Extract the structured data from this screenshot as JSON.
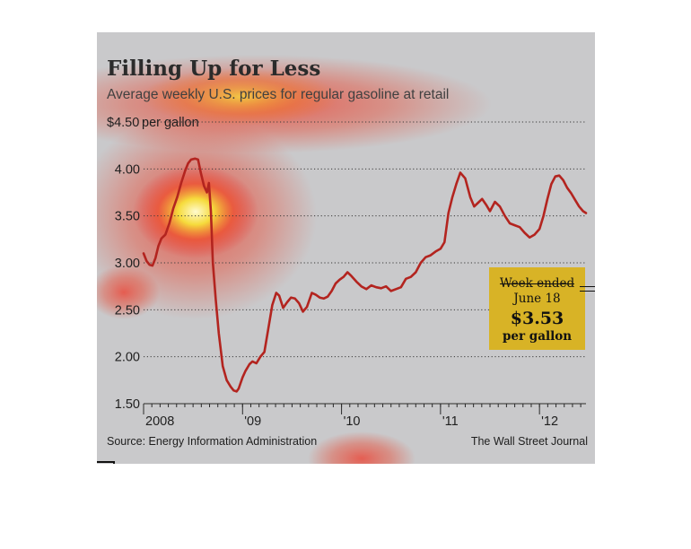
{
  "chart_data": {
    "type": "line",
    "title": "Filling Up for Less",
    "subtitle": "Average weekly U.S. prices for regular gasoline at retail",
    "y_unit_label": "per gallon",
    "ylim": [
      1.5,
      4.5
    ],
    "y_ticks": [
      1.5,
      2.0,
      2.5,
      3.0,
      3.5,
      4.0,
      4.5
    ],
    "y_tick_labels": [
      "1.50",
      "2.00",
      "2.50",
      "3.00",
      "3.50",
      "4.00",
      "$4.50"
    ],
    "xlim": [
      2008.0,
      2012.47
    ],
    "x_tick_labels": [
      {
        "x": 2008,
        "label": "2008"
      },
      {
        "x": 2009,
        "label": "'09"
      },
      {
        "x": 2010,
        "label": "'10"
      },
      {
        "x": 2011,
        "label": "'11"
      },
      {
        "x": 2012,
        "label": "'12"
      }
    ],
    "grid": "horizontal dotted",
    "series": [
      {
        "color": "#b3241f",
        "x": [
          2008.0,
          2008.03,
          2008.06,
          2008.09,
          2008.12,
          2008.15,
          2008.18,
          2008.22,
          2008.26,
          2008.3,
          2008.34,
          2008.38,
          2008.42,
          2008.45,
          2008.48,
          2008.52,
          2008.55,
          2008.58,
          2008.61,
          2008.64,
          2008.66,
          2008.68,
          2008.7,
          2008.73,
          2008.76,
          2008.8,
          2008.84,
          2008.88,
          2008.91,
          2008.94,
          2008.96,
          2008.98,
          2009.0,
          2009.03,
          2009.07,
          2009.1,
          2009.14,
          2009.18,
          2009.22,
          2009.26,
          2009.3,
          2009.34,
          2009.37,
          2009.41,
          2009.45,
          2009.49,
          2009.53,
          2009.57,
          2009.61,
          2009.65,
          2009.7,
          2009.74,
          2009.78,
          2009.82,
          2009.86,
          2009.9,
          2009.94,
          2009.98,
          2010.02,
          2010.06,
          2010.1,
          2010.15,
          2010.2,
          2010.25,
          2010.3,
          2010.35,
          2010.4,
          2010.45,
          2010.5,
          2010.55,
          2010.6,
          2010.65,
          2010.7,
          2010.75,
          2010.8,
          2010.85,
          2010.9,
          2010.95,
          2011.0,
          2011.04,
          2011.08,
          2011.12,
          2011.16,
          2011.2,
          2011.25,
          2011.3,
          2011.34,
          2011.38,
          2011.42,
          2011.46,
          2011.5,
          2011.55,
          2011.6,
          2011.65,
          2011.7,
          2011.75,
          2011.8,
          2011.85,
          2011.9,
          2011.95,
          2012.0,
          2012.04,
          2012.08,
          2012.12,
          2012.16,
          2012.2,
          2012.24,
          2012.28,
          2012.32,
          2012.36,
          2012.4,
          2012.44,
          2012.47
        ],
        "y": [
          3.1,
          3.02,
          2.98,
          2.97,
          3.05,
          3.18,
          3.26,
          3.3,
          3.42,
          3.58,
          3.7,
          3.85,
          3.98,
          4.06,
          4.1,
          4.11,
          4.1,
          3.95,
          3.82,
          3.75,
          3.85,
          3.55,
          3.0,
          2.6,
          2.25,
          1.9,
          1.75,
          1.68,
          1.64,
          1.63,
          1.66,
          1.72,
          1.78,
          1.85,
          1.92,
          1.95,
          1.93,
          2.0,
          2.05,
          2.3,
          2.55,
          2.68,
          2.65,
          2.52,
          2.58,
          2.63,
          2.62,
          2.57,
          2.48,
          2.53,
          2.68,
          2.66,
          2.63,
          2.62,
          2.64,
          2.7,
          2.78,
          2.82,
          2.85,
          2.9,
          2.86,
          2.8,
          2.75,
          2.72,
          2.76,
          2.74,
          2.73,
          2.75,
          2.7,
          2.72,
          2.74,
          2.83,
          2.85,
          2.9,
          3.0,
          3.06,
          3.08,
          3.12,
          3.15,
          3.22,
          3.53,
          3.7,
          3.84,
          3.96,
          3.9,
          3.7,
          3.6,
          3.64,
          3.68,
          3.62,
          3.55,
          3.65,
          3.6,
          3.5,
          3.42,
          3.4,
          3.38,
          3.32,
          3.27,
          3.3,
          3.36,
          3.5,
          3.68,
          3.84,
          3.92,
          3.93,
          3.88,
          3.8,
          3.74,
          3.67,
          3.6,
          3.55,
          3.53
        ]
      }
    ],
    "callout": {
      "line1": "Week ended",
      "line2": "June 18",
      "value": "$3.53",
      "line4": "per gallon"
    },
    "source": "Source: Energy Information Administration",
    "credit": "The Wall Street Journal",
    "colors": {
      "background": "#c9c9cb",
      "line": "#b3241f",
      "callout": "#d8b326",
      "grid": "#3a3a3a"
    }
  }
}
